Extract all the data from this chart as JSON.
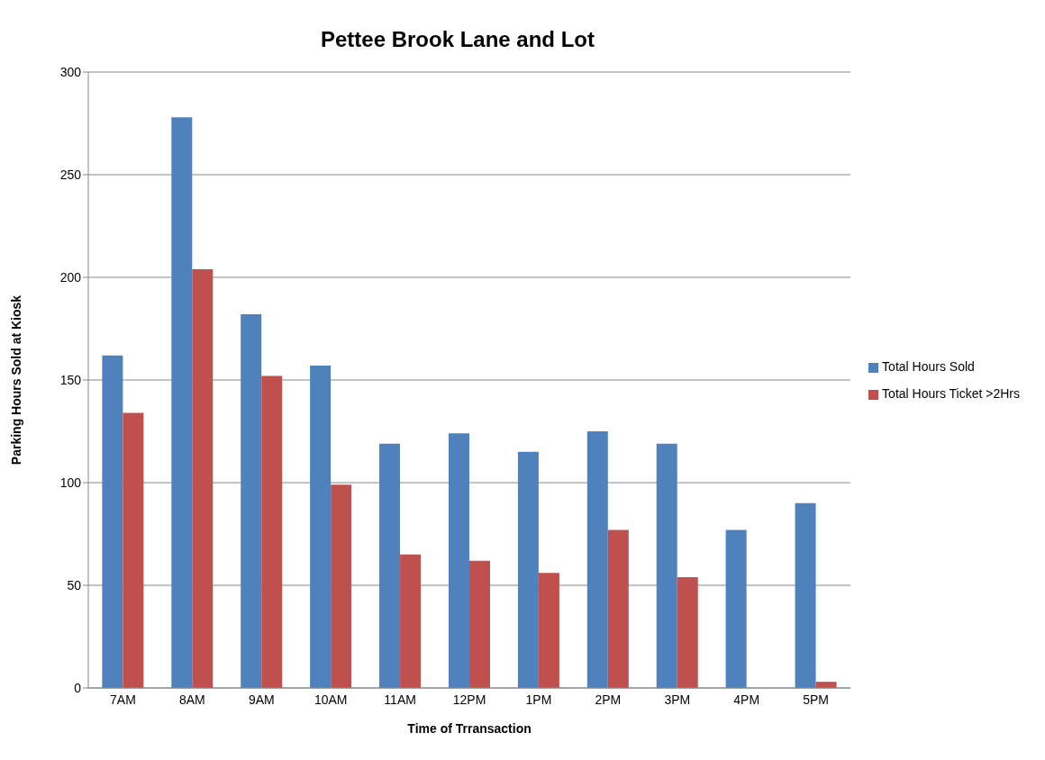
{
  "chart_data": {
    "type": "bar",
    "title": "Pettee Brook Lane and Lot",
    "xlabel": "Time of Trransaction",
    "ylabel": "Parking Hours Sold at Kiosk",
    "categories": [
      "7AM",
      "8AM",
      "9AM",
      "10AM",
      "11AM",
      "12PM",
      "1PM",
      "2PM",
      "3PM",
      "4PM",
      "5PM"
    ],
    "series": [
      {
        "name": "Total Hours Sold",
        "color": "#4f81bd",
        "values": [
          162,
          278,
          182,
          157,
          119,
          124,
          115,
          125,
          119,
          77,
          90
        ]
      },
      {
        "name": "Total Hours Ticket >2Hrs",
        "color": "#c0504d",
        "values": [
          134,
          204,
          152,
          99,
          65,
          62,
          56,
          77,
          54,
          0,
          3
        ]
      }
    ],
    "ylim": [
      0,
      300
    ],
    "yticks": [
      0,
      50,
      100,
      150,
      200,
      250,
      300
    ],
    "grid": "y",
    "legend": "right"
  }
}
